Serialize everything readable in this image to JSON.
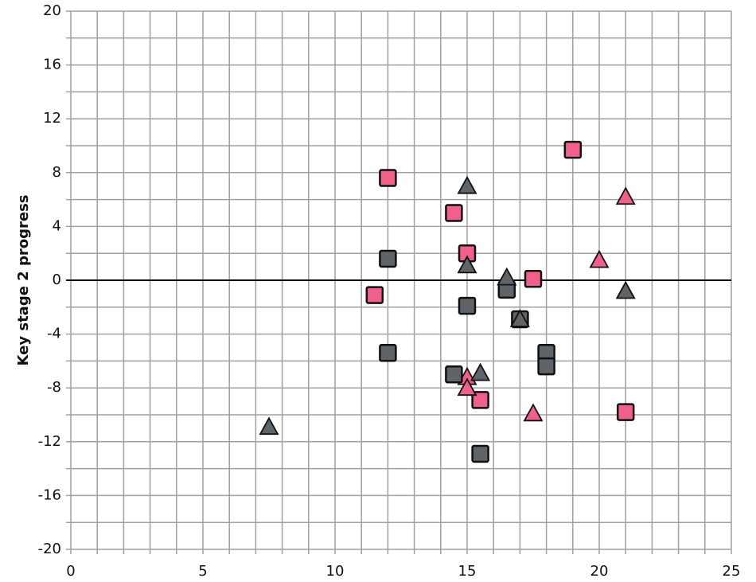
{
  "chart_data": {
    "type": "scatter",
    "ylabel": "Key stage 2 progress",
    "xlim": [
      0,
      25
    ],
    "xticks": [
      0,
      5,
      10,
      15,
      20,
      25
    ],
    "xgrid": [
      1,
      2,
      3,
      4,
      6,
      7,
      8,
      9,
      11,
      12,
      13,
      14,
      16,
      17,
      18,
      19,
      21,
      22,
      23,
      24
    ],
    "ylim": [
      -20,
      20
    ],
    "yticks": [
      -20,
      -16,
      -12,
      -8,
      -4,
      0,
      4,
      8,
      12,
      16,
      20
    ],
    "ygrid": [
      -18,
      -14,
      -10,
      -6,
      -2,
      2,
      6,
      10,
      14,
      18
    ],
    "grid": true,
    "series": [
      {
        "color": "#f0608a",
        "marker": "square",
        "x": [
          12,
          14.5,
          15,
          11.5,
          17.5,
          19,
          15.5,
          21
        ],
        "values": [
          7.6,
          5.0,
          2.0,
          -1.1,
          0.1,
          9.7,
          -8.9,
          -9.8
        ]
      },
      {
        "color": "#f0608a",
        "marker": "triangle",
        "x": [
          21,
          20,
          15,
          15,
          17.5
        ],
        "values": [
          6.2,
          1.5,
          -7.2,
          -8.0,
          -9.9
        ]
      },
      {
        "color": "#5f6468",
        "marker": "square",
        "x": [
          12,
          12,
          15,
          16.5,
          17,
          14.5,
          18,
          18,
          15.5
        ],
        "values": [
          1.6,
          -5.4,
          -1.9,
          -0.7,
          -2.9,
          -7.0,
          -5.4,
          -6.4,
          -12.9
        ]
      },
      {
        "color": "#5f6468",
        "marker": "triangle",
        "x": [
          15,
          15,
          16.5,
          17,
          15.5,
          21,
          7.5
        ],
        "values": [
          7.0,
          1.1,
          0.2,
          -2.9,
          -6.9,
          -0.8,
          -10.9
        ]
      }
    ]
  }
}
